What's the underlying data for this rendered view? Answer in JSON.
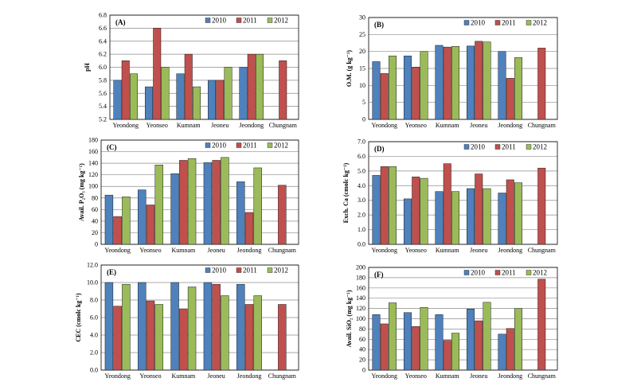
{
  "figure": {
    "legend_labels": [
      "2010",
      "2011",
      "2012"
    ],
    "series_colors": [
      "#4F81BD",
      "#C0504D",
      "#9BBB59"
    ],
    "categories": [
      "Yeondong",
      "Yeonseo",
      "Kumnam",
      "Jeoneu",
      "Jeondong",
      "Chungnam"
    ]
  },
  "chart_data": [
    {
      "type": "bar",
      "panel": "(A)",
      "ylabel": "pH",
      "ylim": [
        5.2,
        6.8
      ],
      "yticks": [
        "5.2",
        "5.4",
        "5.6",
        "5.8",
        "6.0",
        "6.2",
        "6.4",
        "6.6",
        "6.8"
      ],
      "categories": [
        "Yeondong",
        "Yeonseo",
        "Kumnam",
        "Jeoneu",
        "Jeondong",
        "Chungnam"
      ],
      "series": [
        {
          "name": "2010",
          "values": [
            5.8,
            5.7,
            5.9,
            5.8,
            6.0,
            null
          ]
        },
        {
          "name": "2011",
          "values": [
            6.1,
            6.6,
            6.2,
            5.8,
            6.2,
            6.1
          ]
        },
        {
          "name": "2012",
          "values": [
            5.9,
            6.0,
            5.7,
            6.0,
            6.2,
            null
          ]
        }
      ],
      "legend": "top-right"
    },
    {
      "type": "bar",
      "panel": "(B)",
      "ylabel": "O.M. (g kg⁻¹)",
      "ylim": [
        0,
        30
      ],
      "yticks": [
        "0",
        "5",
        "10",
        "15",
        "20",
        "25",
        "30"
      ],
      "categories": [
        "Yeondong",
        "Yeonseo",
        "Kumnam",
        "Jeoneu",
        "Jeondong",
        "Chungnam"
      ],
      "series": [
        {
          "name": "2010",
          "values": [
            17.0,
            18.7,
            21.8,
            21.6,
            20.0,
            null
          ]
        },
        {
          "name": "2011",
          "values": [
            13.5,
            15.4,
            21.3,
            23.0,
            12.1,
            21.0
          ]
        },
        {
          "name": "2012",
          "values": [
            18.7,
            20.0,
            21.5,
            22.8,
            18.2,
            null
          ]
        }
      ],
      "legend": "top-right"
    },
    {
      "type": "bar",
      "panel": "(C)",
      "ylabel": "Avail. P₂O₅ (mg kg⁻¹)",
      "ylim": [
        0,
        180
      ],
      "yticks": [
        "0",
        "20",
        "40",
        "60",
        "80",
        "100",
        "120",
        "140",
        "160",
        "180"
      ],
      "categories": [
        "Yeondong",
        "Yeonseo",
        "Kumnam",
        "Jeoneu",
        "Jeondong",
        "Chungnam"
      ],
      "series": [
        {
          "name": "2010",
          "values": [
            85,
            94,
            122,
            141,
            108,
            null
          ]
        },
        {
          "name": "2011",
          "values": [
            48,
            68,
            145,
            145,
            55,
            102
          ]
        },
        {
          "name": "2012",
          "values": [
            82,
            137,
            148,
            150,
            132,
            null
          ]
        }
      ],
      "legend": "top-right"
    },
    {
      "type": "bar",
      "panel": "(D)",
      "ylabel": "Exch. Ca (cmolc kg⁻¹)",
      "ylim": [
        0,
        7
      ],
      "yticks": [
        "0.0",
        "1.0",
        "2.0",
        "3.0",
        "4.0",
        "5.0",
        "6.0",
        "7.0"
      ],
      "categories": [
        "Yeondong",
        "Yeonseo",
        "Kumnam",
        "Jeoneu",
        "Jeondong",
        "Chungnam"
      ],
      "series": [
        {
          "name": "2010",
          "values": [
            4.7,
            3.1,
            3.6,
            3.8,
            3.5,
            null
          ]
        },
        {
          "name": "2011",
          "values": [
            5.3,
            4.6,
            5.5,
            4.8,
            4.4,
            5.2
          ]
        },
        {
          "name": "2012",
          "values": [
            5.3,
            4.5,
            3.6,
            3.8,
            4.2,
            null
          ]
        }
      ],
      "legend": "top-right"
    },
    {
      "type": "bar",
      "panel": "(E)",
      "ylabel": "CEC (cmolc kg⁻¹)",
      "ylim": [
        0,
        12
      ],
      "yticks": [
        "0.0",
        "2.0",
        "4.0",
        "6.0",
        "8.0",
        "10.0",
        "12.0"
      ],
      "categories": [
        "Yeondong",
        "Yeonseo",
        "Kumnam",
        "Jeoneu",
        "Jeondong",
        "Chungnam"
      ],
      "series": [
        {
          "name": "2010",
          "values": [
            10.0,
            10.0,
            10.0,
            10.0,
            9.8,
            null
          ]
        },
        {
          "name": "2011",
          "values": [
            7.3,
            7.9,
            7.0,
            9.8,
            7.5,
            7.5
          ]
        },
        {
          "name": "2012",
          "values": [
            9.8,
            7.5,
            9.5,
            8.5,
            8.5,
            null
          ]
        }
      ],
      "legend": "top-right"
    },
    {
      "type": "bar",
      "panel": "(F)",
      "ylabel": "Avail. SiO₂ (mg kg⁻¹)",
      "ylim": [
        0,
        200
      ],
      "yticks": [
        "0",
        "20",
        "40",
        "60",
        "80",
        "100",
        "120",
        "140",
        "160",
        "180",
        "200"
      ],
      "categories": [
        "Yeondong",
        "Yeonseo",
        "Kumnam",
        "Jeoneu",
        "Jeondong",
        "Chungnam"
      ],
      "series": [
        {
          "name": "2010",
          "values": [
            108,
            112,
            108,
            119,
            70,
            null
          ]
        },
        {
          "name": "2011",
          "values": [
            90,
            85,
            58,
            96,
            81,
            177
          ]
        },
        {
          "name": "2012",
          "values": [
            131,
            122,
            72,
            132,
            120,
            null
          ]
        }
      ],
      "legend": "top-right"
    }
  ]
}
